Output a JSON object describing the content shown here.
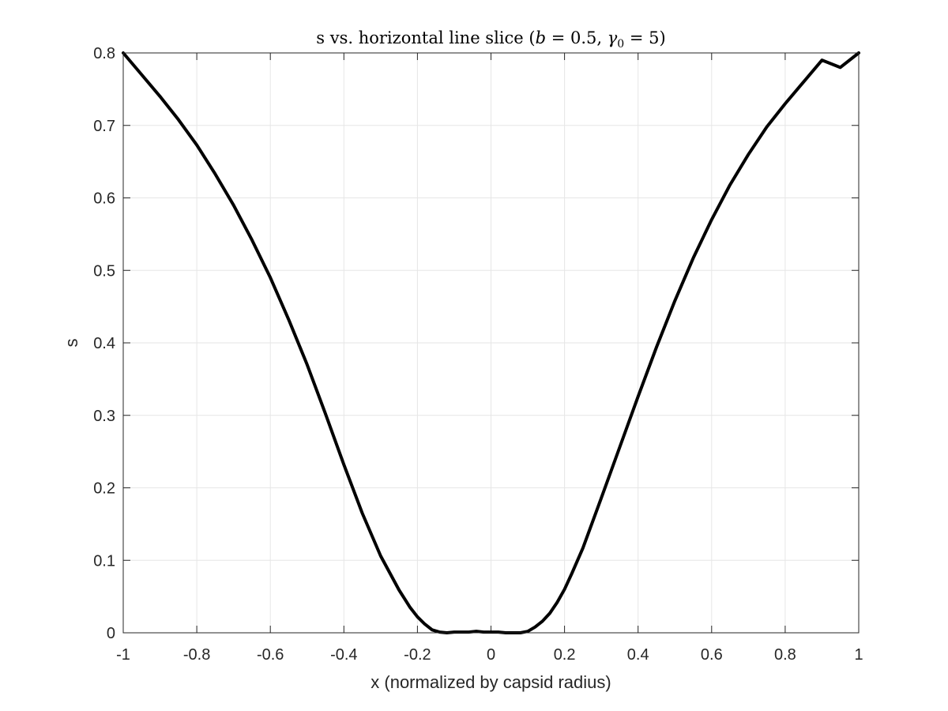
{
  "chart_data": {
    "type": "line",
    "title_parts": {
      "prefix": "s vs. horizontal line slice (",
      "b_var": "b",
      "b_eq": " = 0.5, ",
      "gamma_var": "γ",
      "gamma_sub": "0",
      "gamma_eq": " = 5)"
    },
    "xlabel": "x (normalized by capsid radius)",
    "ylabel": "s",
    "xlim": [
      -1,
      1
    ],
    "ylim": [
      0,
      0.8
    ],
    "xticks": [
      -1,
      -0.8,
      -0.6,
      -0.4,
      -0.2,
      0,
      0.2,
      0.4,
      0.6,
      0.8,
      1
    ],
    "xtick_labels": [
      "-1",
      "-0.8",
      "-0.6",
      "-0.4",
      "-0.2",
      "0",
      "0.2",
      "0.4",
      "0.6",
      "0.8",
      "1"
    ],
    "yticks": [
      0,
      0.1,
      0.2,
      0.3,
      0.4,
      0.5,
      0.6,
      0.7,
      0.8
    ],
    "ytick_labels": [
      "0",
      "0.1",
      "0.2",
      "0.3",
      "0.4",
      "0.5",
      "0.6",
      "0.7",
      "0.8"
    ],
    "grid": true,
    "line_color": "#000000",
    "series": [
      {
        "x": [
          -1,
          -0.95,
          -0.9,
          -0.85,
          -0.8,
          -0.75,
          -0.7,
          -0.65,
          -0.6,
          -0.55,
          -0.5,
          -0.45,
          -0.4,
          -0.35,
          -0.3,
          -0.25,
          -0.22,
          -0.2,
          -0.18,
          -0.16,
          -0.14,
          -0.12,
          -0.1,
          -0.08,
          -0.06,
          -0.04,
          -0.02,
          0,
          0.02,
          0.04,
          0.06,
          0.08,
          0.1,
          0.12,
          0.14,
          0.16,
          0.18,
          0.2,
          0.22,
          0.25,
          0.3,
          0.35,
          0.4,
          0.45,
          0.5,
          0.55,
          0.6,
          0.65,
          0.7,
          0.75,
          0.8,
          0.85,
          0.9,
          0.95,
          1
        ],
        "y": [
          0.8,
          0.77,
          0.74,
          0.708,
          0.673,
          0.633,
          0.59,
          0.542,
          0.49,
          0.432,
          0.37,
          0.302,
          0.232,
          0.165,
          0.106,
          0.059,
          0.035,
          0.022,
          0.012,
          0.004,
          0.001,
          0.0,
          0.001,
          0.001,
          0.001,
          0.002,
          0.001,
          0.001,
          0.001,
          0.0,
          0.0,
          0.0,
          0.002,
          0.008,
          0.016,
          0.027,
          0.042,
          0.06,
          0.082,
          0.117,
          0.186,
          0.256,
          0.326,
          0.394,
          0.458,
          0.517,
          0.57,
          0.618,
          0.66,
          0.698,
          0.73,
          0.76,
          0.79,
          0.78,
          0.8
        ]
      }
    ]
  }
}
